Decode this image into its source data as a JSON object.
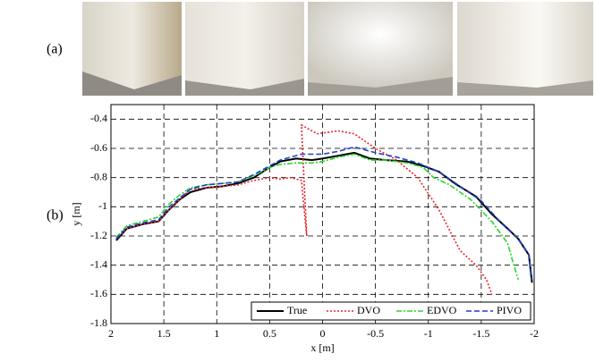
{
  "panel_labels": [
    "(a)",
    "(b)"
  ],
  "chart_data": {
    "type": "line",
    "xlabel": "x [m]",
    "ylabel": "y [m]",
    "xlim": [
      2,
      -2
    ],
    "ylim": [
      -1.8,
      -0.3
    ],
    "xticks": [
      2,
      1.5,
      1,
      0.5,
      0,
      -0.5,
      -1,
      -1.5,
      -2
    ],
    "yticks": [
      -1.8,
      -1.6,
      -1.4,
      -1.2,
      -1,
      -0.8,
      -0.6,
      -0.4
    ],
    "grid": true,
    "legend": "lower right",
    "series": [
      {
        "name": "True",
        "color": "#000000",
        "linestyle": "solid",
        "x": [
          1.95,
          1.85,
          1.7,
          1.55,
          1.45,
          1.35,
          1.25,
          1.1,
          0.95,
          0.8,
          0.65,
          0.5,
          0.4,
          0.25,
          0.1,
          0,
          -0.15,
          -0.3,
          -0.45,
          -0.6,
          -0.8,
          -0.95,
          -1.1,
          -1.25,
          -1.45,
          -1.6,
          -1.75,
          -1.85,
          -1.95,
          -1.98
        ],
        "values": [
          -1.23,
          -1.15,
          -1.12,
          -1.1,
          -1.02,
          -0.95,
          -0.9,
          -0.87,
          -0.86,
          -0.84,
          -0.8,
          -0.73,
          -0.69,
          -0.67,
          -0.68,
          -0.67,
          -0.65,
          -0.63,
          -0.67,
          -0.68,
          -0.69,
          -0.72,
          -0.76,
          -0.84,
          -0.93,
          -1.05,
          -1.15,
          -1.22,
          -1.33,
          -1.52
        ]
      },
      {
        "name": "DVO",
        "color": "#e8262b",
        "linestyle": "dotted",
        "x": [
          1.95,
          1.85,
          1.7,
          1.55,
          1.45,
          1.35,
          1.25,
          1.1,
          0.95,
          0.8,
          0.65,
          0.5,
          0.4,
          0.3,
          0.2,
          0.15,
          0.2,
          0.05,
          -0.15,
          -0.3,
          -0.5,
          -0.7,
          -0.9,
          -1.1,
          -1.3,
          -1.45,
          -1.55,
          -1.6
        ],
        "values": [
          -1.22,
          -1.15,
          -1.12,
          -1.1,
          -1.02,
          -0.95,
          -0.88,
          -0.87,
          -0.86,
          -0.85,
          -0.82,
          -0.8,
          -0.81,
          -0.8,
          -0.82,
          -1.2,
          -0.44,
          -0.5,
          -0.48,
          -0.5,
          -0.6,
          -0.68,
          -0.8,
          -1.02,
          -1.3,
          -1.4,
          -1.5,
          -1.6
        ]
      },
      {
        "name": "EDVO",
        "color": "#2bd52b",
        "linestyle": "dashdot",
        "x": [
          1.95,
          1.85,
          1.7,
          1.55,
          1.45,
          1.35,
          1.25,
          1.1,
          0.95,
          0.8,
          0.65,
          0.5,
          0.4,
          0.25,
          0.1,
          0,
          -0.15,
          -0.3,
          -0.45,
          -0.6,
          -0.8,
          -0.95,
          -1.05,
          -1.2,
          -1.4,
          -1.6,
          -1.75,
          -1.8,
          -1.85
        ],
        "values": [
          -1.21,
          -1.13,
          -1.1,
          -1.07,
          -0.98,
          -0.92,
          -0.87,
          -0.85,
          -0.84,
          -0.83,
          -0.79,
          -0.73,
          -0.71,
          -0.7,
          -0.7,
          -0.69,
          -0.66,
          -0.64,
          -0.68,
          -0.68,
          -0.7,
          -0.73,
          -0.8,
          -0.85,
          -0.95,
          -1.1,
          -1.25,
          -1.38,
          -1.5
        ]
      },
      {
        "name": "PIVO",
        "color": "#1f3fd0",
        "linestyle": "dashed",
        "x": [
          1.95,
          1.85,
          1.7,
          1.55,
          1.45,
          1.35,
          1.25,
          1.1,
          0.95,
          0.8,
          0.65,
          0.5,
          0.4,
          0.2,
          0,
          -0.15,
          -0.3,
          -0.5,
          -0.7,
          -0.9,
          -1.1,
          -1.3,
          -1.5,
          -1.7,
          -1.85,
          -1.95,
          -1.98
        ],
        "values": [
          -1.22,
          -1.14,
          -1.11,
          -1.09,
          -1.0,
          -0.94,
          -0.88,
          -0.85,
          -0.84,
          -0.83,
          -0.78,
          -0.72,
          -0.68,
          -0.64,
          -0.64,
          -0.62,
          -0.59,
          -0.63,
          -0.66,
          -0.7,
          -0.76,
          -0.86,
          -0.96,
          -1.12,
          -1.22,
          -1.33,
          -1.5
        ]
      }
    ]
  }
}
